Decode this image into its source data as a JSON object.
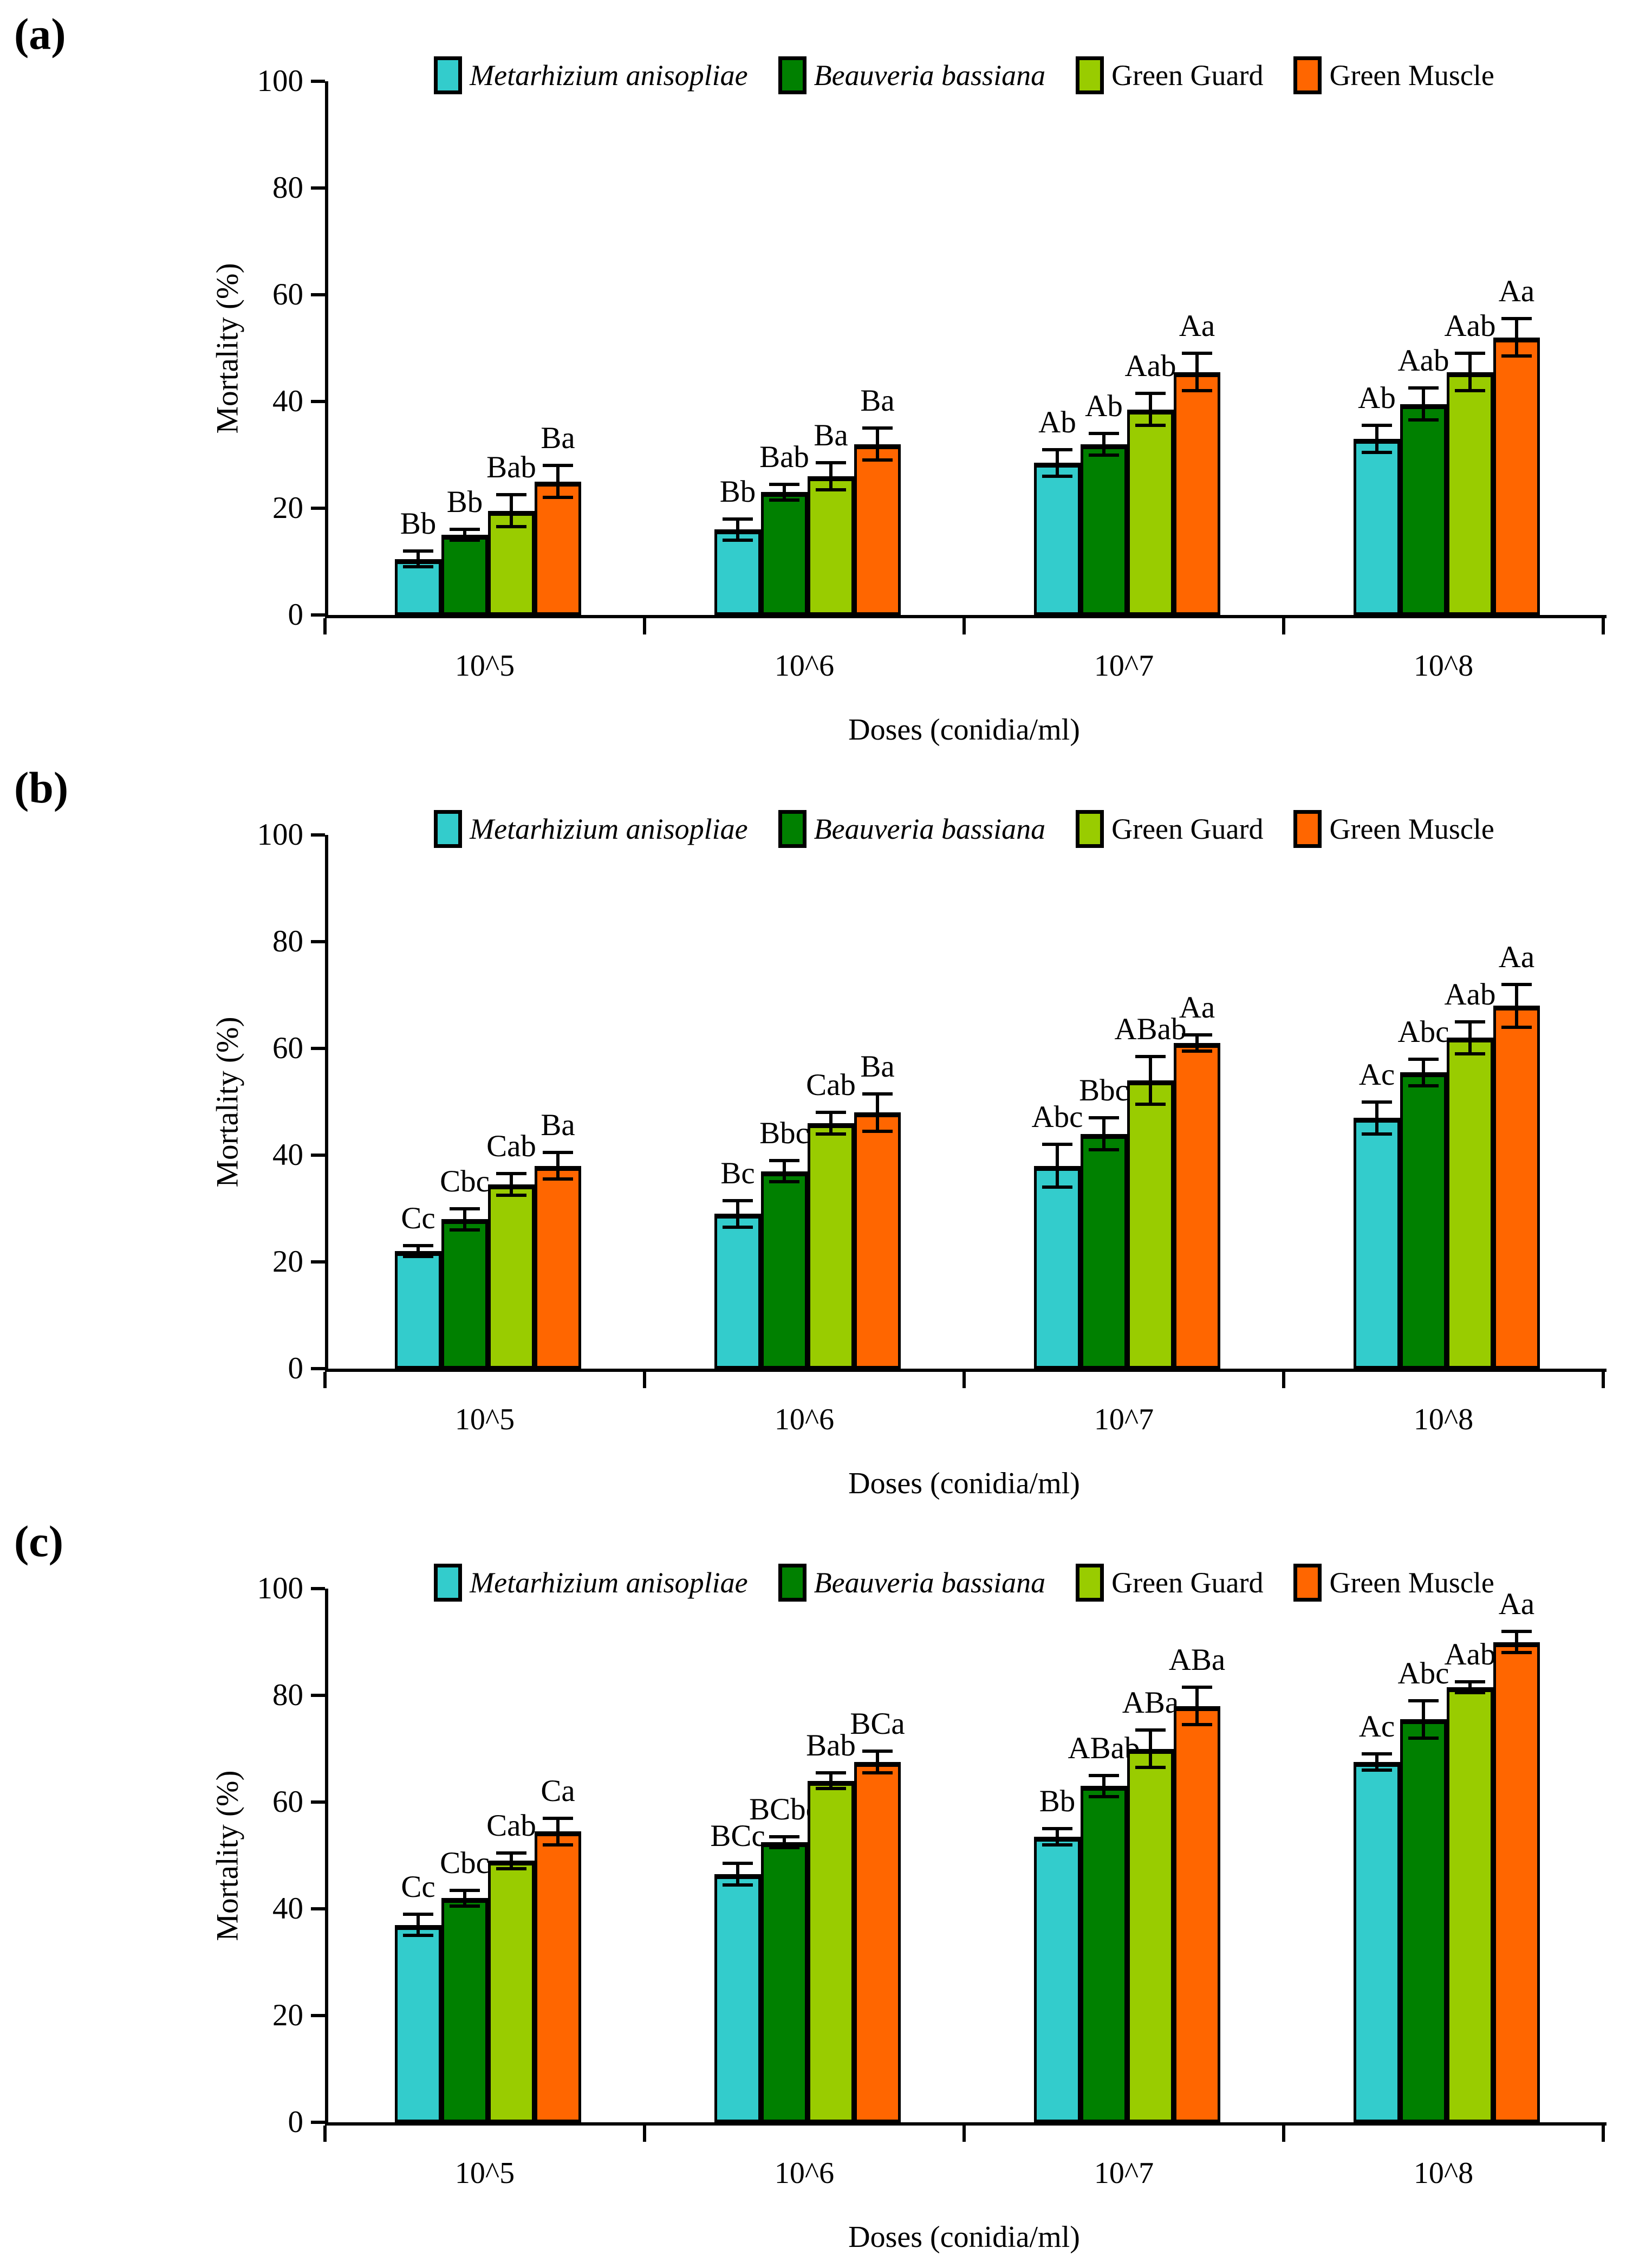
{
  "figure": {
    "y_axis": {
      "title": "Mortality (%)",
      "ticks": [
        0,
        20,
        40,
        60,
        80,
        100
      ],
      "min": 0,
      "max": 100
    },
    "x_axis": {
      "title": "Doses (conidia/ml)",
      "categories": [
        "10^5",
        "10^6",
        "10^7",
        "10^8"
      ]
    },
    "legend": [
      {
        "label": "Metarhizium anisopliae",
        "color": "#33CCCC",
        "italic": true
      },
      {
        "label": "Beauveria bassiana",
        "color": "#008000",
        "italic": true
      },
      {
        "label": "Green Guard",
        "color": "#99CC00",
        "italic": false
      },
      {
        "label": "Green Muscle",
        "color": "#FF6600",
        "italic": false
      }
    ]
  },
  "chart_data": [
    {
      "type": "bar",
      "panel_label": "(a)",
      "title": "",
      "xlabel": "Doses (conidia/ml)",
      "ylabel": "Mortality (%)",
      "ylim": [
        0,
        100
      ],
      "grid": false,
      "legend_position": "top-center",
      "categories": [
        "10^5",
        "10^6",
        "10^7",
        "10^8"
      ],
      "series": [
        {
          "name": "Metarhizium anisopliae",
          "color": "#33CCCC",
          "values": [
            10.5,
            16,
            28.5,
            33
          ],
          "errors": [
            1.5,
            2,
            2.5,
            2.5
          ],
          "sig_labels": [
            "Bb",
            "Bb",
            "Ab",
            "Ab"
          ]
        },
        {
          "name": "Beauveria bassiana",
          "color": "#008000",
          "values": [
            15,
            23,
            32,
            39.5
          ],
          "errors": [
            1,
            1.5,
            2,
            3
          ],
          "sig_labels": [
            "Bb",
            "Bab",
            "Ab",
            "Aab"
          ]
        },
        {
          "name": "Green Guard",
          "color": "#99CC00",
          "values": [
            19.5,
            26,
            38.5,
            45.5
          ],
          "errors": [
            3,
            2.5,
            3,
            3.5
          ],
          "sig_labels": [
            "Bab",
            "Ba",
            "Aab",
            "Aab"
          ]
        },
        {
          "name": "Green Muscle",
          "color": "#FF6600",
          "values": [
            25,
            32,
            45.5,
            52
          ],
          "errors": [
            3,
            3,
            3.5,
            3.5
          ],
          "sig_labels": [
            "Ba",
            "Ba",
            "Aa",
            "Aa"
          ]
        }
      ]
    },
    {
      "type": "bar",
      "panel_label": "(b)",
      "title": "",
      "xlabel": "Doses (conidia/ml)",
      "ylabel": "Mortality (%)",
      "ylim": [
        0,
        100
      ],
      "grid": false,
      "legend_position": "top-center",
      "categories": [
        "10^5",
        "10^6",
        "10^7",
        "10^8"
      ],
      "series": [
        {
          "name": "Metarhizium anisopliae",
          "color": "#33CCCC",
          "values": [
            22,
            29,
            38,
            47
          ],
          "errors": [
            1,
            2.5,
            4,
            3
          ],
          "sig_labels": [
            "Cc",
            "Bc",
            "Abc",
            "Ac"
          ]
        },
        {
          "name": "Beauveria bassiana",
          "color": "#008000",
          "values": [
            28,
            37,
            44,
            55.5
          ],
          "errors": [
            2,
            2,
            3,
            2.5
          ],
          "sig_labels": [
            "Cbc",
            "Bbc",
            "Bbc",
            "Abc"
          ]
        },
        {
          "name": "Green Guard",
          "color": "#99CC00",
          "values": [
            34.5,
            46,
            54,
            62
          ],
          "errors": [
            2,
            2,
            4.5,
            3
          ],
          "sig_labels": [
            "Cab",
            "Cab",
            "ABab",
            "Aab"
          ]
        },
        {
          "name": "Green Muscle",
          "color": "#FF6600",
          "values": [
            38,
            48,
            61,
            68
          ],
          "errors": [
            2.5,
            3.5,
            1.5,
            4
          ],
          "sig_labels": [
            "Ba",
            "Ba",
            "Aa",
            "Aa"
          ]
        }
      ]
    },
    {
      "type": "bar",
      "panel_label": "(c)",
      "title": "",
      "xlabel": "Doses (conidia/ml)",
      "ylabel": "Mortality (%)",
      "ylim": [
        0,
        100
      ],
      "grid": false,
      "legend_position": "top-center",
      "categories": [
        "10^5",
        "10^6",
        "10^7",
        "10^8"
      ],
      "series": [
        {
          "name": "Metarhizium anisopliae",
          "color": "#33CCCC",
          "values": [
            37,
            46.5,
            53.5,
            67.5
          ],
          "errors": [
            2,
            2,
            1.5,
            1.5
          ],
          "sig_labels": [
            "Cc",
            "BCc",
            "Bb",
            "Ac"
          ]
        },
        {
          "name": "Beauveria bassiana",
          "color": "#008000",
          "values": [
            42,
            52.5,
            63,
            75.5
          ],
          "errors": [
            1.5,
            1,
            2,
            3.5
          ],
          "sig_labels": [
            "Cbc",
            "BCbc",
            "ABab",
            "Abc"
          ]
        },
        {
          "name": "Green Guard",
          "color": "#99CC00",
          "values": [
            49,
            64,
            70,
            81.5
          ],
          "errors": [
            1.5,
            1.5,
            3.5,
            1
          ],
          "sig_labels": [
            "Cab",
            "Bab",
            "ABa",
            "Aab"
          ]
        },
        {
          "name": "Green Muscle",
          "color": "#FF6600",
          "values": [
            54.5,
            67.5,
            78,
            90
          ],
          "errors": [
            2.5,
            2,
            3.5,
            2
          ],
          "sig_labels": [
            "Ca",
            "BCa",
            "ABa",
            "Aa"
          ]
        }
      ]
    }
  ]
}
